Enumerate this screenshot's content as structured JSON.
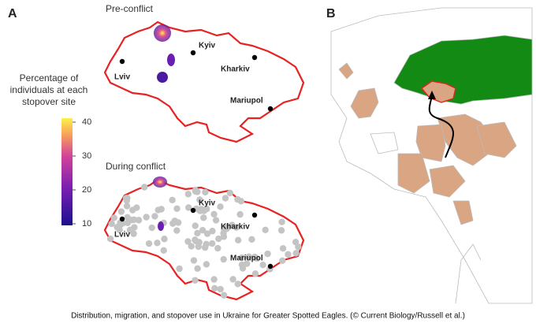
{
  "panel_a": {
    "label": "A",
    "maps": [
      {
        "title": "Pre-conflict",
        "cities": [
          "Lviv",
          "Kyiv",
          "Kharkiv",
          "Mariupol"
        ]
      },
      {
        "title": "During conflict",
        "cities": [
          "Lviv",
          "Kyiv",
          "Kharkiv",
          "Mariupol"
        ]
      }
    ],
    "colorbar": {
      "title": [
        "Percentage of",
        "individuals at each",
        "stopover site"
      ],
      "ticks": [
        10,
        20,
        30,
        40
      ]
    }
  },
  "panel_b": {
    "label": "B"
  },
  "caption": "Distribution, migration, and stopover use in Ukraine for Greater Spotted Eagles. (© Current Biology/Russell et al.)"
}
